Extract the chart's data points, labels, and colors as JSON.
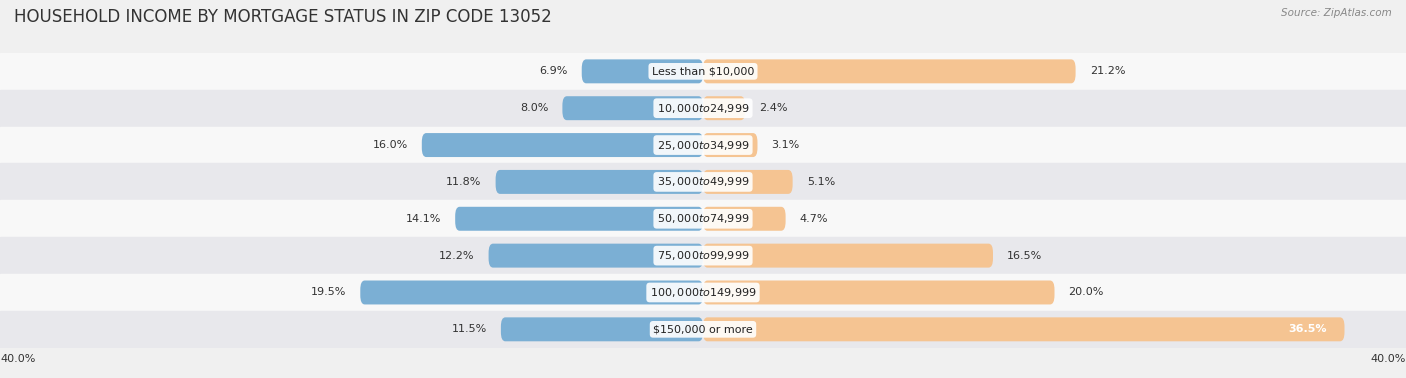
{
  "title": "HOUSEHOLD INCOME BY MORTGAGE STATUS IN ZIP CODE 13052",
  "source": "Source: ZipAtlas.com",
  "categories": [
    "Less than $10,000",
    "$10,000 to $24,999",
    "$25,000 to $34,999",
    "$35,000 to $49,999",
    "$50,000 to $74,999",
    "$75,000 to $99,999",
    "$100,000 to $149,999",
    "$150,000 or more"
  ],
  "without_mortgage": [
    6.9,
    8.0,
    16.0,
    11.8,
    14.1,
    12.2,
    19.5,
    11.5
  ],
  "with_mortgage": [
    21.2,
    2.4,
    3.1,
    5.1,
    4.7,
    16.5,
    20.0,
    36.5
  ],
  "color_without": "#7bafd4",
  "color_with": "#f5c492",
  "axis_max": 40.0,
  "bg_color": "#f0f0f0",
  "row_colors": [
    "#f8f8f8",
    "#e8e8ec"
  ],
  "title_fontsize": 12,
  "label_fontsize": 8,
  "source_fontsize": 7.5
}
